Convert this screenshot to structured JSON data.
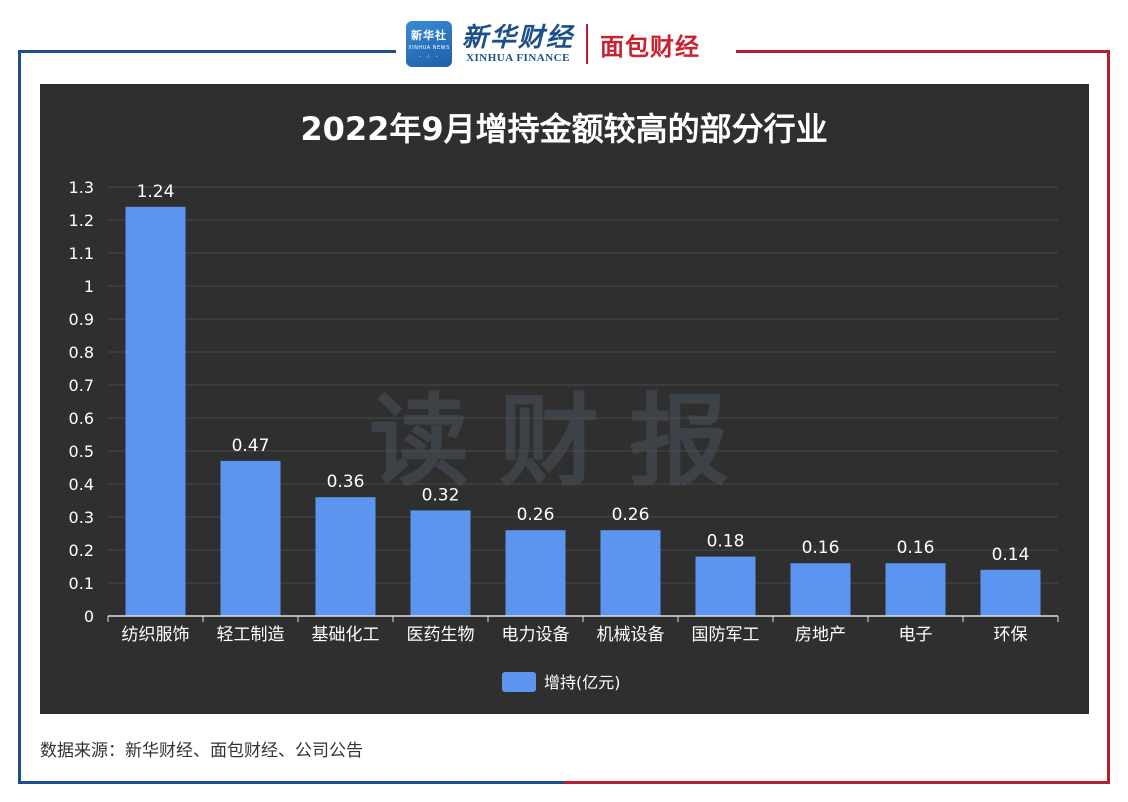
{
  "brand": {
    "xinhua_logo_cn": "新华社",
    "xinhua_logo_en": "XINHUA NEWS",
    "xinhua_finance_cn": "新华财经",
    "xinhua_finance_en": "XINHUA FINANCE",
    "mianbao": "面包财经"
  },
  "watermark": "读财报",
  "source": "数据来源：新华财经、面包财经、公司公告",
  "colors": {
    "panel_bg": "#2f2f2f",
    "bar": "#5b95f0",
    "text": "#ffffff",
    "frame_blue": "#1d4f8a",
    "frame_red": "#b5202e"
  },
  "chart_data": {
    "type": "bar",
    "title": "2022年9月增持金额较高的部分行业",
    "categories": [
      "纺织服饰",
      "轻工制造",
      "基础化工",
      "医药生物",
      "电力设备",
      "机械设备",
      "国防军工",
      "房地产",
      "电子",
      "环保"
    ],
    "series": [
      {
        "name": "增持(亿元)",
        "values": [
          1.24,
          0.47,
          0.36,
          0.32,
          0.26,
          0.26,
          0.18,
          0.16,
          0.16,
          0.14
        ]
      }
    ],
    "data_labels": [
      "1.24",
      "0.47",
      "0.36",
      "0.32",
      "0.26",
      "0.26",
      "0.18",
      "0.16",
      "0.16",
      "0.14"
    ],
    "yticks": [
      "0",
      "0.1",
      "0.2",
      "0.3",
      "0.4",
      "0.5",
      "0.6",
      "0.7",
      "0.8",
      "0.9",
      "1",
      "1.1",
      "1.2",
      "1.3"
    ],
    "ylim": [
      0,
      1.3
    ],
    "grid": true,
    "legend": "bottom-center"
  }
}
